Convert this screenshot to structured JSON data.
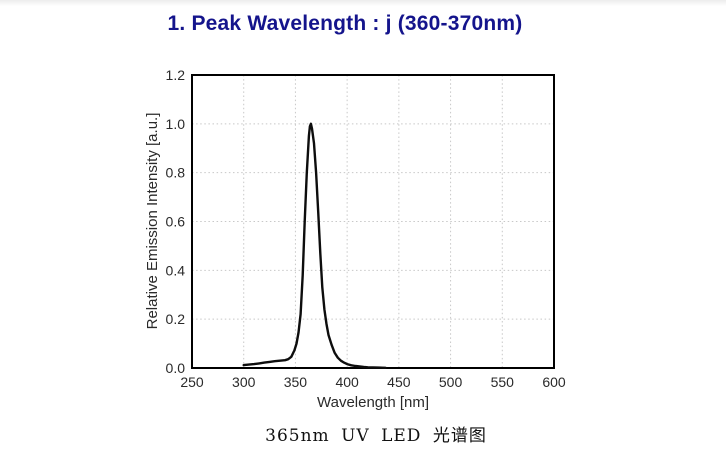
{
  "page": {
    "title": "1. Peak Wavelength : j (360-370nm)",
    "caption": "365nm UV LED 光谱图"
  },
  "colors": {
    "title_text": "#14148c",
    "curve": "#0d0d0d",
    "frame": "#000000",
    "grid": "#c8c8c8",
    "tick_text": "#2a2a2a"
  },
  "chart_data": {
    "type": "line",
    "title": "",
    "xlabel": "Wavelength [nm]",
    "ylabel": "Relative Emission Intensity [a.u.]",
    "xlim": [
      250,
      600
    ],
    "ylim": [
      0,
      1.2
    ],
    "x_tick_labels": [
      "250",
      "300",
      "350",
      "400",
      "450",
      "500",
      "550",
      "600"
    ],
    "y_tick_labels": [
      "0.0",
      "0.2",
      "0.4",
      "0.6",
      "0.8",
      "1.0",
      "1.2"
    ],
    "grid": true,
    "grid_style": "dotted",
    "legend_position": "none",
    "series": [
      {
        "name": "365nm UV LED emission spectrum",
        "peak_nm": 365,
        "peak_intensity": 1.0,
        "points": [
          [
            300,
            0.012
          ],
          [
            305,
            0.014
          ],
          [
            310,
            0.016
          ],
          [
            315,
            0.019
          ],
          [
            320,
            0.022
          ],
          [
            325,
            0.025
          ],
          [
            330,
            0.028
          ],
          [
            335,
            0.03
          ],
          [
            340,
            0.032
          ],
          [
            343,
            0.036
          ],
          [
            346,
            0.046
          ],
          [
            349,
            0.072
          ],
          [
            351,
            0.1
          ],
          [
            353,
            0.145
          ],
          [
            355,
            0.22
          ],
          [
            357,
            0.38
          ],
          [
            359,
            0.6
          ],
          [
            361,
            0.8
          ],
          [
            363,
            0.95
          ],
          [
            364,
            0.99
          ],
          [
            365,
            1.0
          ],
          [
            366,
            0.98
          ],
          [
            368,
            0.92
          ],
          [
            370,
            0.8
          ],
          [
            372,
            0.64
          ],
          [
            374,
            0.47
          ],
          [
            376,
            0.33
          ],
          [
            378,
            0.24
          ],
          [
            380,
            0.18
          ],
          [
            382,
            0.135
          ],
          [
            385,
            0.095
          ],
          [
            388,
            0.062
          ],
          [
            391,
            0.042
          ],
          [
            394,
            0.03
          ],
          [
            397,
            0.022
          ],
          [
            400,
            0.016
          ],
          [
            404,
            0.011
          ],
          [
            408,
            0.008
          ],
          [
            412,
            0.006
          ],
          [
            416,
            0.004
          ],
          [
            420,
            0.003
          ],
          [
            425,
            0.002
          ],
          [
            430,
            0.0015
          ],
          [
            437,
            0.001
          ]
        ]
      }
    ]
  }
}
